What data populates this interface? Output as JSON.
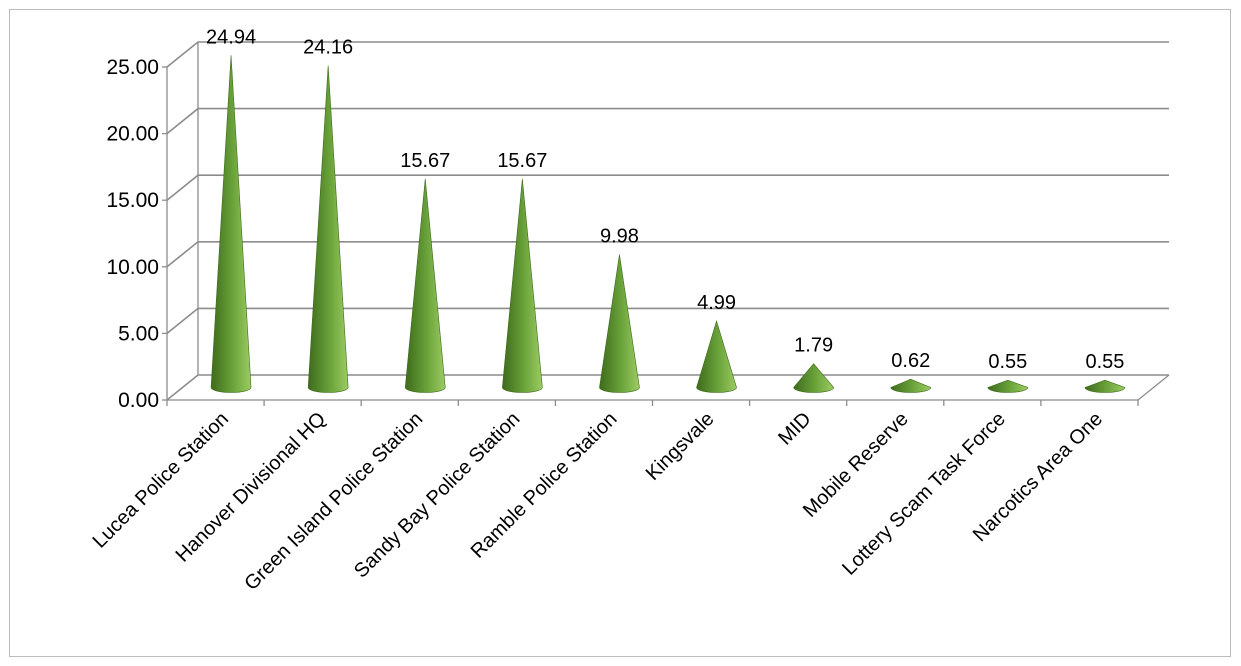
{
  "chart_data": {
    "type": "bar",
    "style": "3d-cone",
    "categories": [
      "Lucea Police Station",
      "Hanover Divisional HQ",
      "Green Island Police Station",
      "Sandy Bay Police Station",
      "Ramble Police Station",
      "Kingsvale",
      "MID",
      "Mobile Reserve",
      "Lottery Scam Task Force",
      "Narcotics Area One"
    ],
    "values": [
      24.94,
      24.16,
      15.67,
      15.67,
      9.98,
      4.99,
      1.79,
      0.62,
      0.55,
      0.55
    ],
    "value_labels": [
      "24.94",
      "24.16",
      "15.67",
      "15.67",
      "9.98",
      "4.99",
      "1.79",
      "0.62",
      "0.55",
      "0.55"
    ],
    "yticks": [
      "0.00",
      "5.00",
      "10.00",
      "15.00",
      "20.00",
      "25.00"
    ],
    "ylim": [
      0,
      25
    ],
    "title": "",
    "xlabel": "",
    "ylabel": "",
    "grid": true,
    "legend": "none",
    "colors": {
      "cone_dark": "#3e6b1c",
      "cone_mid": "#6aa33a",
      "cone_light": "#9ccc63",
      "grid": "#8c8c8c"
    }
  }
}
